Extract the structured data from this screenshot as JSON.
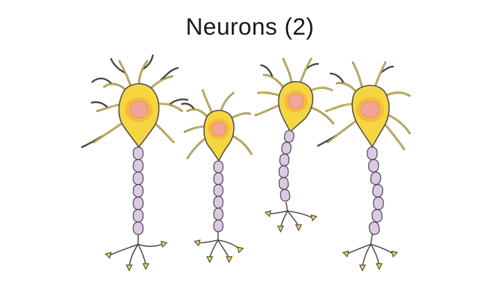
{
  "slide": {
    "title": "Neurons (2)"
  },
  "diagram": {
    "subject": "neuron",
    "count": 4,
    "colors": {
      "soma": "#f6d640",
      "nucleus": "#f2a2a0",
      "myelin": "#ddc9e3",
      "outline": "#4a4a4a",
      "terminal": "#f4d63a"
    }
  }
}
